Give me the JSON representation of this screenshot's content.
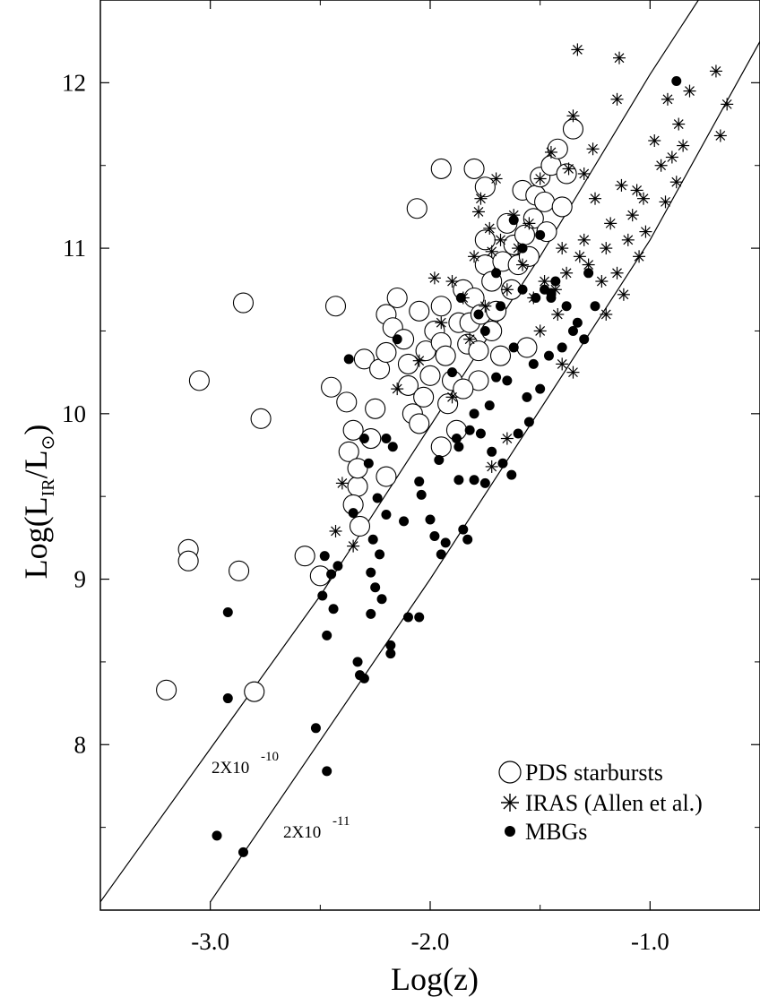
{
  "chart_data": {
    "type": "scatter",
    "title": "",
    "xlabel": "Log(z)",
    "ylabel_parts": {
      "base": "Log(L",
      "sub": "IR",
      "mid": "/L",
      "sun": "⊙",
      "end": ")"
    },
    "xlim": [
      -3.5,
      -0.5
    ],
    "ylim": [
      7.0,
      12.5
    ],
    "x_ticks": [
      {
        "v": -3.0,
        "label": "-3.0"
      },
      {
        "v": -2.0,
        "label": "-2.0"
      },
      {
        "v": -1.0,
        "label": "-1.0"
      }
    ],
    "y_ticks": [
      {
        "v": 8,
        "label": "8"
      },
      {
        "v": 9,
        "label": "9"
      },
      {
        "v": 10,
        "label": "10"
      },
      {
        "v": 11,
        "label": "11"
      },
      {
        "v": 12,
        "label": "12"
      }
    ],
    "grid": false,
    "legend_position": "bottom-right",
    "lines": [
      {
        "label": "2X10",
        "exponent": "-10",
        "points": [
          [
            -3.5,
            7.05
          ],
          [
            -2.5,
            8.9
          ],
          [
            -1.5,
            10.95
          ],
          [
            -1.0,
            12.05
          ],
          [
            -0.78,
            12.5
          ]
        ]
      },
      {
        "label": "2X10",
        "exponent": "-11",
        "points": [
          [
            -3.0,
            7.05
          ],
          [
            -2.0,
            9.0
          ],
          [
            -1.0,
            11.05
          ],
          [
            -0.5,
            12.25
          ]
        ]
      }
    ],
    "series": [
      {
        "name": "PDS starbursts",
        "marker": "open-circle",
        "points": [
          [
            -3.2,
            8.33
          ],
          [
            -3.1,
            9.18
          ],
          [
            -3.1,
            9.11
          ],
          [
            -3.05,
            10.2
          ],
          [
            -2.85,
            10.67
          ],
          [
            -2.87,
            9.05
          ],
          [
            -2.8,
            8.32
          ],
          [
            -2.77,
            9.97
          ],
          [
            -2.57,
            9.14
          ],
          [
            -2.5,
            9.02
          ],
          [
            -2.43,
            10.65
          ],
          [
            -2.45,
            10.16
          ],
          [
            -2.38,
            10.07
          ],
          [
            -2.37,
            9.77
          ],
          [
            -2.35,
            9.9
          ],
          [
            -2.33,
            9.56
          ],
          [
            -2.33,
            9.67
          ],
          [
            -2.35,
            9.45
          ],
          [
            -2.32,
            9.32
          ],
          [
            -2.3,
            10.33
          ],
          [
            -2.27,
            9.85
          ],
          [
            -2.25,
            10.03
          ],
          [
            -2.23,
            10.27
          ],
          [
            -2.2,
            10.6
          ],
          [
            -2.2,
            10.37
          ],
          [
            -2.2,
            9.62
          ],
          [
            -2.17,
            10.52
          ],
          [
            -2.15,
            10.7
          ],
          [
            -2.12,
            10.45
          ],
          [
            -2.1,
            10.3
          ],
          [
            -2.1,
            10.17
          ],
          [
            -2.08,
            10.0
          ],
          [
            -2.05,
            10.62
          ],
          [
            -2.05,
            9.94
          ],
          [
            -2.03,
            10.1
          ],
          [
            -2.02,
            10.38
          ],
          [
            -2.0,
            10.23
          ],
          [
            -1.98,
            10.5
          ],
          [
            -1.95,
            10.65
          ],
          [
            -1.95,
            10.43
          ],
          [
            -1.93,
            10.35
          ],
          [
            -1.92,
            10.06
          ],
          [
            -1.9,
            10.2
          ],
          [
            -1.88,
            9.9
          ],
          [
            -1.87,
            10.55
          ],
          [
            -1.85,
            10.75
          ],
          [
            -1.83,
            10.42
          ],
          [
            -1.82,
            10.55
          ],
          [
            -1.8,
            10.7
          ],
          [
            -1.78,
            10.38
          ],
          [
            -1.78,
            10.2
          ],
          [
            -1.77,
            10.6
          ],
          [
            -1.75,
            10.9
          ],
          [
            -1.75,
            11.05
          ],
          [
            -1.72,
            10.8
          ],
          [
            -1.72,
            10.5
          ],
          [
            -1.7,
            10.62
          ],
          [
            -1.68,
            10.35
          ],
          [
            -1.67,
            10.92
          ],
          [
            -1.65,
            11.15
          ],
          [
            -1.63,
            10.75
          ],
          [
            -1.62,
            11.02
          ],
          [
            -1.6,
            10.9
          ],
          [
            -1.58,
            11.35
          ],
          [
            -1.57,
            11.08
          ],
          [
            -1.55,
            10.95
          ],
          [
            -1.53,
            11.18
          ],
          [
            -1.52,
            11.32
          ],
          [
            -1.5,
            11.43
          ],
          [
            -1.48,
            11.28
          ],
          [
            -1.47,
            11.1
          ],
          [
            -1.45,
            11.5
          ],
          [
            -1.42,
            11.6
          ],
          [
            -1.4,
            11.25
          ],
          [
            -1.38,
            11.45
          ],
          [
            -1.35,
            11.72
          ],
          [
            -1.8,
            11.48
          ],
          [
            -1.75,
            11.37
          ],
          [
            -2.06,
            11.24
          ],
          [
            -1.95,
            11.48
          ],
          [
            -1.56,
            10.4
          ],
          [
            -1.95,
            9.8
          ],
          [
            -1.85,
            10.15
          ]
        ]
      },
      {
        "name": "IRAS (Allen et al.)",
        "marker": "asterisk",
        "points": [
          [
            -2.43,
            9.29
          ],
          [
            -2.4,
            9.58
          ],
          [
            -2.35,
            9.2
          ],
          [
            -2.15,
            10.15
          ],
          [
            -2.05,
            10.32
          ],
          [
            -1.98,
            10.82
          ],
          [
            -1.95,
            10.55
          ],
          [
            -1.9,
            10.8
          ],
          [
            -1.85,
            10.7
          ],
          [
            -1.82,
            10.45
          ],
          [
            -1.8,
            10.95
          ],
          [
            -1.78,
            11.22
          ],
          [
            -1.77,
            11.3
          ],
          [
            -1.75,
            10.65
          ],
          [
            -1.73,
            11.12
          ],
          [
            -1.72,
            10.98
          ],
          [
            -1.7,
            11.42
          ],
          [
            -1.68,
            11.05
          ],
          [
            -1.65,
            10.75
          ],
          [
            -1.62,
            11.2
          ],
          [
            -1.6,
            11.0
          ],
          [
            -1.58,
            10.9
          ],
          [
            -1.55,
            11.15
          ],
          [
            -1.53,
            10.7
          ],
          [
            -1.5,
            11.42
          ],
          [
            -1.48,
            10.8
          ],
          [
            -1.45,
            11.58
          ],
          [
            -1.43,
            10.75
          ],
          [
            -1.4,
            11.0
          ],
          [
            -1.38,
            10.85
          ],
          [
            -1.37,
            11.48
          ],
          [
            -1.35,
            11.8
          ],
          [
            -1.32,
            10.95
          ],
          [
            -1.3,
            11.05
          ],
          [
            -1.28,
            10.9
          ],
          [
            -1.26,
            11.6
          ],
          [
            -1.25,
            11.3
          ],
          [
            -1.22,
            10.8
          ],
          [
            -1.2,
            11.0
          ],
          [
            -1.18,
            11.15
          ],
          [
            -1.15,
            10.85
          ],
          [
            -1.13,
            11.38
          ],
          [
            -1.12,
            10.72
          ],
          [
            -1.1,
            11.05
          ],
          [
            -1.08,
            11.2
          ],
          [
            -1.06,
            11.35
          ],
          [
            -1.05,
            10.95
          ],
          [
            -1.03,
            11.3
          ],
          [
            -1.02,
            11.1
          ],
          [
            -0.98,
            11.65
          ],
          [
            -0.95,
            11.5
          ],
          [
            -0.93,
            11.28
          ],
          [
            -0.92,
            11.9
          ],
          [
            -0.9,
            11.55
          ],
          [
            -0.88,
            11.4
          ],
          [
            -0.87,
            11.75
          ],
          [
            -0.85,
            11.62
          ],
          [
            -0.82,
            11.95
          ],
          [
            -0.7,
            12.07
          ],
          [
            -0.68,
            11.68
          ],
          [
            -0.65,
            11.87
          ],
          [
            -1.33,
            12.2
          ],
          [
            -1.14,
            12.15
          ],
          [
            -1.15,
            11.9
          ],
          [
            -1.3,
            11.45
          ],
          [
            -1.4,
            10.3
          ],
          [
            -1.35,
            10.25
          ],
          [
            -1.65,
            9.85
          ],
          [
            -1.72,
            9.68
          ],
          [
            -1.9,
            10.1
          ],
          [
            -1.5,
            10.5
          ],
          [
            -1.2,
            10.6
          ],
          [
            -1.42,
            10.6
          ]
        ]
      },
      {
        "name": "MBGs",
        "marker": "filled-circle",
        "points": [
          [
            -2.97,
            7.45
          ],
          [
            -2.85,
            7.35
          ],
          [
            -2.92,
            8.8
          ],
          [
            -2.92,
            8.28
          ],
          [
            -2.52,
            8.1
          ],
          [
            -2.47,
            7.84
          ],
          [
            -2.48,
            9.14
          ],
          [
            -2.49,
            8.9
          ],
          [
            -2.47,
            8.66
          ],
          [
            -2.45,
            9.03
          ],
          [
            -2.44,
            8.82
          ],
          [
            -2.42,
            9.08
          ],
          [
            -2.37,
            10.33
          ],
          [
            -2.35,
            9.4
          ],
          [
            -2.33,
            8.5
          ],
          [
            -2.32,
            8.42
          ],
          [
            -2.3,
            9.85
          ],
          [
            -2.3,
            8.4
          ],
          [
            -2.28,
            9.7
          ],
          [
            -2.27,
            9.04
          ],
          [
            -2.27,
            8.79
          ],
          [
            -2.26,
            9.24
          ],
          [
            -2.25,
            8.95
          ],
          [
            -2.24,
            9.49
          ],
          [
            -2.23,
            9.15
          ],
          [
            -2.22,
            8.88
          ],
          [
            -2.2,
            9.85
          ],
          [
            -2.2,
            9.39
          ],
          [
            -2.18,
            8.6
          ],
          [
            -2.18,
            8.55
          ],
          [
            -2.17,
            9.8
          ],
          [
            -2.15,
            10.45
          ],
          [
            -2.12,
            9.35
          ],
          [
            -2.1,
            8.77
          ],
          [
            -2.05,
            8.77
          ],
          [
            -2.05,
            9.59
          ],
          [
            -2.04,
            9.51
          ],
          [
            -2.0,
            9.36
          ],
          [
            -1.98,
            9.26
          ],
          [
            -1.96,
            9.72
          ],
          [
            -1.95,
            9.15
          ],
          [
            -1.93,
            9.22
          ],
          [
            -1.9,
            10.25
          ],
          [
            -1.88,
            9.85
          ],
          [
            -1.87,
            9.8
          ],
          [
            -1.86,
            10.7
          ],
          [
            -1.85,
            9.3
          ],
          [
            -1.83,
            9.24
          ],
          [
            -1.82,
            9.9
          ],
          [
            -1.8,
            9.6
          ],
          [
            -1.78,
            10.6
          ],
          [
            -1.77,
            9.88
          ],
          [
            -1.75,
            9.58
          ],
          [
            -1.73,
            10.05
          ],
          [
            -1.72,
            9.77
          ],
          [
            -1.7,
            10.85
          ],
          [
            -1.68,
            10.65
          ],
          [
            -1.67,
            9.7
          ],
          [
            -1.65,
            10.2
          ],
          [
            -1.63,
            9.63
          ],
          [
            -1.62,
            11.17
          ],
          [
            -1.6,
            9.88
          ],
          [
            -1.58,
            10.75
          ],
          [
            -1.56,
            10.1
          ],
          [
            -1.55,
            9.95
          ],
          [
            -1.53,
            10.3
          ],
          [
            -1.52,
            10.7
          ],
          [
            -1.5,
            10.15
          ],
          [
            -1.48,
            10.75
          ],
          [
            -1.46,
            10.35
          ],
          [
            -1.45,
            10.7
          ],
          [
            -1.43,
            10.8
          ],
          [
            -1.4,
            10.4
          ],
          [
            -1.38,
            10.65
          ],
          [
            -1.35,
            10.5
          ],
          [
            -1.33,
            10.55
          ],
          [
            -1.3,
            10.45
          ],
          [
            -1.28,
            10.85
          ],
          [
            -1.25,
            10.65
          ],
          [
            -0.88,
            12.01
          ],
          [
            -1.5,
            11.08
          ],
          [
            -1.58,
            11.0
          ],
          [
            -1.45,
            10.73
          ],
          [
            -1.62,
            10.4
          ],
          [
            -1.7,
            10.22
          ],
          [
            -1.75,
            10.5
          ],
          [
            -1.8,
            10.0
          ],
          [
            -1.87,
            9.6
          ]
        ]
      }
    ]
  }
}
